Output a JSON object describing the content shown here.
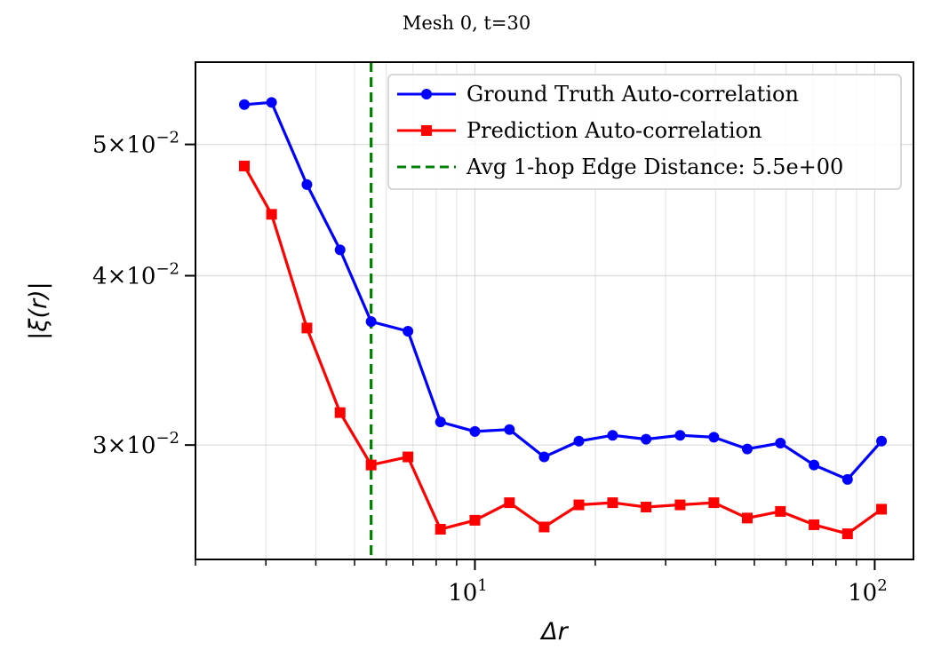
{
  "chart_data": {
    "type": "line",
    "title": "Mesh 0, t=30",
    "xlabel": "Δr",
    "ylabel": "|ξ(r)|",
    "xscale": "log",
    "yscale": "log",
    "xlim": [
      2.0,
      125
    ],
    "ylim": [
      0.0247,
      0.0575
    ],
    "grid": true,
    "legend_position": "top-right",
    "x_ticks": [
      {
        "value": 10,
        "base": "10",
        "exp": "1"
      },
      {
        "value": 100,
        "base": "10",
        "exp": "2"
      }
    ],
    "y_ticks": [
      {
        "value": 0.03,
        "coef": "3",
        "base": "10",
        "exp": "−2"
      },
      {
        "value": 0.04,
        "coef": "4",
        "base": "10",
        "exp": "−2"
      },
      {
        "value": 0.05,
        "coef": "5",
        "base": "10",
        "exp": "−2"
      }
    ],
    "x": [
      2.65,
      3.1,
      3.8,
      4.6,
      5.5,
      6.8,
      8.2,
      10.0,
      12.2,
      14.9,
      18.2,
      22.1,
      26.8,
      32.6,
      39.6,
      48.0,
      58.1,
      70.5,
      85.5,
      104.0
    ],
    "series": [
      {
        "name": "Ground Truth Auto-correlation",
        "color": "#0000ff",
        "marker": "circle",
        "values": [
          0.0535,
          0.0537,
          0.0467,
          0.0418,
          0.037,
          0.0364,
          0.0312,
          0.0307,
          0.0308,
          0.0294,
          0.0302,
          0.0305,
          0.0303,
          0.0305,
          0.0304,
          0.0298,
          0.0301,
          0.029,
          0.0283,
          0.0302
        ]
      },
      {
        "name": "Prediction Auto-correlation",
        "color": "#ff0000",
        "marker": "square",
        "values": [
          0.0482,
          0.0444,
          0.0366,
          0.0317,
          0.029,
          0.0294,
          0.026,
          0.0264,
          0.0272,
          0.0261,
          0.0271,
          0.0272,
          0.027,
          0.0271,
          0.0272,
          0.0265,
          0.0268,
          0.0262,
          0.0258,
          0.0269
        ]
      }
    ],
    "annotations": [
      {
        "type": "vline",
        "x": 5.5,
        "color": "#008000",
        "style": "dashed",
        "label": "Avg 1-hop Edge Distance: 5.5e+00"
      }
    ]
  }
}
